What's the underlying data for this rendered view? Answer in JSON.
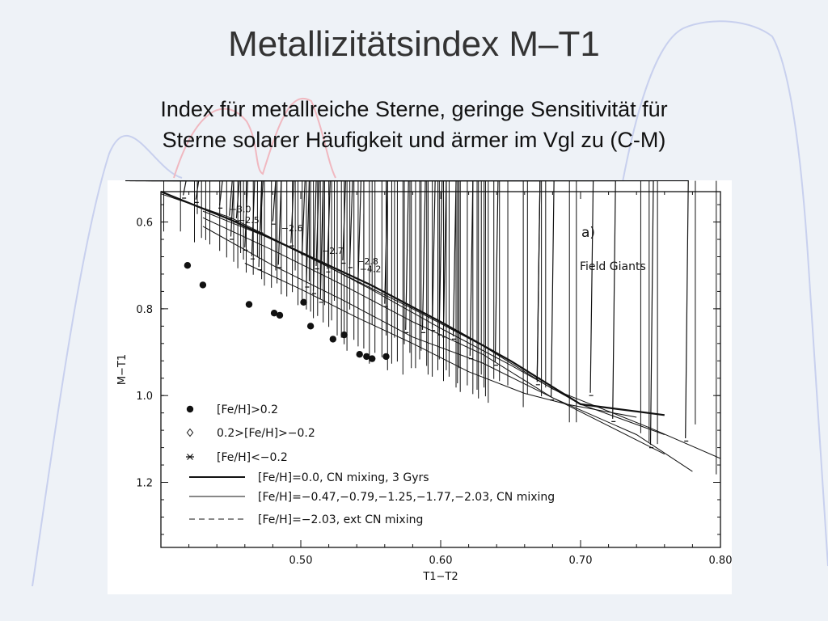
{
  "slide": {
    "title": "Metallizitätsindex M–T1",
    "subtitle_line1": "Index für metallreiche Sterne, geringe Sensitivität für",
    "subtitle_line2": "Sterne solarer Häufigkeit und ärmer im Vgl zu (C-M)"
  },
  "colors": {
    "background": "#eef2f7",
    "decoration_blue": "#c8d0ee",
    "decoration_red": "#f0b8c0"
  },
  "chart_data": {
    "type": "scatter",
    "panel_label": "a)",
    "panel_text": "Field Giants",
    "xlabel": "T1−T2",
    "ylabel": "M−T1",
    "xlim": [
      0.4,
      0.8
    ],
    "ylim": [
      1.35,
      0.53
    ],
    "y_inverted": true,
    "grid": false,
    "legend_position": "lower-left",
    "xticks": [
      0.5,
      0.6,
      0.7,
      0.8
    ],
    "xtick_labels": [
      "0.50",
      "0.60",
      "0.70",
      "0.80"
    ],
    "yticks": [
      0.6,
      0.8,
      1.0,
      1.2
    ],
    "ytick_labels": [
      "0.6",
      "0.8",
      "1.0",
      "1.2"
    ],
    "legend": [
      {
        "symbol": "filled-circle",
        "label": "[Fe/H]>0.2"
      },
      {
        "symbol": "open-diamond",
        "label": "0.2>[Fe/H]>−0.2"
      },
      {
        "symbol": "asterisk",
        "label": "[Fe/H]<−0.2"
      },
      {
        "symbol": "thick-line",
        "label": "[Fe/H]=0.0, CN mixing, 3 Gyrs"
      },
      {
        "symbol": "thin-line",
        "label": "[Fe/H]=−0.47,−0.79,−1.25,−1.77,−2.03, CN mixing"
      },
      {
        "symbol": "dashed-line",
        "label": "[Fe/H]=−2.03, ext CN mixing"
      }
    ],
    "annotations": [
      {
        "text": "−3.0",
        "x": 0.449,
        "y": 0.57
      },
      {
        "text": "−2.5",
        "x": 0.455,
        "y": 0.595
      },
      {
        "text": "−2.6",
        "x": 0.486,
        "y": 0.614
      },
      {
        "text": "−2.7",
        "x": 0.515,
        "y": 0.666
      },
      {
        "text": "−2.8",
        "x": 0.54,
        "y": 0.69
      },
      {
        "text": "−4.2",
        "x": 0.542,
        "y": 0.708
      }
    ],
    "series": [
      {
        "name": "[Fe/H]>0.2",
        "marker": "filled-circle",
        "points": [
          [
            0.419,
            0.7
          ],
          [
            0.43,
            0.745
          ],
          [
            0.463,
            0.79
          ],
          [
            0.481,
            0.81
          ],
          [
            0.485,
            0.815
          ],
          [
            0.502,
            0.785
          ],
          [
            0.507,
            0.84
          ],
          [
            0.523,
            0.87
          ],
          [
            0.531,
            0.86
          ],
          [
            0.542,
            0.905
          ],
          [
            0.547,
            0.91
          ],
          [
            0.551,
            0.915
          ],
          [
            0.561,
            0.91
          ]
        ]
      },
      {
        "name": "0.2>[Fe/H]>−0.2",
        "marker": "open-diamond",
        "points": [
          [
            0.402,
            0.63
          ],
          [
            0.414,
            0.63
          ],
          [
            0.424,
            0.655
          ],
          [
            0.429,
            0.645
          ],
          [
            0.426,
            0.59
          ],
          [
            0.435,
            0.66
          ],
          [
            0.432,
            0.65
          ],
          [
            0.442,
            0.675
          ],
          [
            0.447,
            0.69
          ],
          [
            0.452,
            0.7
          ],
          [
            0.455,
            0.715
          ],
          [
            0.459,
            0.695
          ],
          [
            0.461,
            0.725
          ],
          [
            0.466,
            0.73
          ],
          [
            0.472,
            0.74
          ],
          [
            0.474,
            0.755
          ],
          [
            0.479,
            0.76
          ],
          [
            0.483,
            0.75
          ],
          [
            0.486,
            0.775
          ],
          [
            0.49,
            0.78
          ],
          [
            0.494,
            0.77
          ],
          [
            0.498,
            0.8
          ],
          [
            0.501,
            0.795
          ],
          [
            0.504,
            0.81
          ],
          [
            0.507,
            0.815
          ],
          [
            0.509,
            0.83
          ],
          [
            0.512,
            0.825
          ],
          [
            0.516,
            0.84
          ],
          [
            0.52,
            0.85
          ],
          [
            0.522,
            0.835
          ],
          [
            0.526,
            0.87
          ],
          [
            0.529,
            0.875
          ],
          [
            0.531,
            0.89
          ],
          [
            0.533,
            0.905
          ],
          [
            0.538,
            0.88
          ],
          [
            0.541,
            0.895
          ],
          [
            0.545,
            0.9
          ],
          [
            0.549,
            0.935
          ],
          [
            0.553,
            0.91
          ],
          [
            0.558,
            0.92
          ],
          [
            0.562,
            0.95
          ],
          [
            0.565,
            0.935
          ],
          [
            0.569,
            0.93
          ],
          [
            0.573,
            0.96
          ],
          [
            0.578,
            0.91
          ],
          [
            0.582,
            0.945
          ],
          [
            0.585,
            0.925
          ],
          [
            0.59,
            0.94
          ],
          [
            0.594,
            0.965
          ],
          [
            0.598,
            0.95
          ],
          [
            0.602,
            0.975
          ],
          [
            0.606,
            0.965
          ],
          [
            0.611,
            0.99
          ],
          [
            0.614,
            1.0
          ],
          [
            0.619,
            0.985
          ],
          [
            0.623,
            1.005
          ],
          [
            0.627,
            1.015
          ],
          [
            0.631,
            0.99
          ],
          [
            0.634,
            1.025
          ],
          [
            0.579,
            0.945
          ],
          [
            0.591,
            0.96
          ],
          [
            0.604,
            0.95
          ],
          [
            0.612,
            0.98
          ],
          [
            0.626,
            0.995
          ],
          [
            0.632,
            1.01
          ],
          [
            0.638,
            0.97
          ],
          [
            0.648,
            0.985
          ],
          [
            0.662,
            1.005
          ],
          [
            0.672,
            1.01
          ],
          [
            0.659,
            1.035
          ],
          [
            0.692,
            1.07
          ],
          [
            0.697,
            1.07
          ],
          [
            0.675,
            0.99
          ],
          [
            0.743,
            1.095
          ],
          [
            0.749,
            1.115
          ],
          [
            0.755,
            1.12
          ],
          [
            0.782,
            1.075
          ],
          [
            0.797,
            1.19
          ],
          [
            0.457,
            0.68
          ],
          [
            0.469,
            0.69
          ],
          [
            0.482,
            0.72
          ],
          [
            0.496,
            0.72
          ],
          [
            0.506,
            0.745
          ],
          [
            0.514,
            0.76
          ],
          [
            0.517,
            0.8
          ],
          [
            0.524,
            0.79
          ],
          [
            0.535,
            0.81
          ],
          [
            0.545,
            0.83
          ],
          [
            0.551,
            0.845
          ],
          [
            0.561,
            0.87
          ],
          [
            0.567,
            0.875
          ],
          [
            0.574,
            0.89
          ],
          [
            0.586,
            0.905
          ],
          [
            0.599,
            0.925
          ],
          [
            0.613,
            0.945
          ],
          [
            0.629,
            0.96
          ],
          [
            0.642,
            0.975
          ]
        ]
      },
      {
        "name": "[Fe/H]<−0.2",
        "marker": "asterisk",
        "points": [
          [
            0.418,
            0.545
          ],
          [
            0.427,
            0.555
          ],
          [
            0.444,
            0.568
          ],
          [
            0.451,
            0.592
          ],
          [
            0.456,
            0.598
          ],
          [
            0.473,
            0.625
          ],
          [
            0.482,
            0.605
          ],
          [
            0.495,
            0.655
          ],
          [
            0.503,
            0.675
          ],
          [
            0.513,
            0.708
          ],
          [
            0.521,
            0.715
          ],
          [
            0.532,
            0.695
          ],
          [
            0.537,
            0.705
          ],
          [
            0.452,
            0.64
          ],
          [
            0.462,
            0.665
          ],
          [
            0.467,
            0.685
          ],
          [
            0.472,
            0.71
          ],
          [
            0.486,
            0.705
          ],
          [
            0.506,
            0.75
          ],
          [
            0.511,
            0.765
          ],
          [
            0.516,
            0.785
          ],
          [
            0.543,
            0.74
          ],
          [
            0.562,
            0.795
          ],
          [
            0.577,
            0.855
          ],
          [
            0.589,
            0.855
          ],
          [
            0.596,
            0.85
          ],
          [
            0.601,
            0.86
          ],
          [
            0.604,
            0.865
          ],
          [
            0.611,
            0.87
          ],
          [
            0.623,
            0.915
          ],
          [
            0.641,
            0.93
          ],
          [
            0.671,
            0.96
          ],
          [
            0.671,
            0.975
          ],
          [
            0.681,
            1.01
          ],
          [
            0.709,
            1.0
          ],
          [
            0.725,
            1.06
          ],
          [
            0.752,
            1.12
          ],
          [
            0.777,
            1.105
          ],
          [
            0.802,
            1.105
          ],
          [
            0.818,
            1.11
          ]
        ]
      }
    ],
    "models": [
      {
        "style": "thick",
        "points": [
          [
            0.4,
            0.53
          ],
          [
            0.45,
            0.595
          ],
          [
            0.5,
            0.67
          ],
          [
            0.55,
            0.745
          ],
          [
            0.6,
            0.83
          ],
          [
            0.65,
            0.92
          ],
          [
            0.7,
            1.02
          ],
          [
            0.76,
            1.045
          ]
        ]
      },
      {
        "style": "thin",
        "points": [
          [
            0.4,
            0.535
          ],
          [
            0.45,
            0.59
          ],
          [
            0.5,
            0.67
          ],
          [
            0.55,
            0.755
          ],
          [
            0.6,
            0.845
          ],
          [
            0.65,
            0.93
          ],
          [
            0.7,
            1.02
          ],
          [
            0.76,
            1.09
          ]
        ]
      },
      {
        "style": "thin",
        "points": [
          [
            0.43,
            0.575
          ],
          [
            0.48,
            0.64
          ],
          [
            0.53,
            0.72
          ],
          [
            0.58,
            0.8
          ],
          [
            0.63,
            0.885
          ],
          [
            0.68,
            0.985
          ],
          [
            0.75,
            1.075
          ],
          [
            0.8,
            1.145
          ]
        ]
      },
      {
        "style": "thin",
        "points": [
          [
            0.43,
            0.59
          ],
          [
            0.48,
            0.665
          ],
          [
            0.53,
            0.745
          ],
          [
            0.58,
            0.83
          ],
          [
            0.63,
            0.905
          ],
          [
            0.68,
            1.005
          ],
          [
            0.76,
            1.135
          ]
        ]
      },
      {
        "style": "thin",
        "points": [
          [
            0.43,
            0.61
          ],
          [
            0.48,
            0.7
          ],
          [
            0.53,
            0.78
          ],
          [
            0.58,
            0.865
          ],
          [
            0.63,
            0.925
          ],
          [
            0.68,
            1.005
          ],
          [
            0.74,
            1.09
          ],
          [
            0.78,
            1.175
          ]
        ]
      },
      {
        "style": "thin",
        "points": [
          [
            0.46,
            0.695
          ],
          [
            0.5,
            0.755
          ],
          [
            0.54,
            0.82
          ],
          [
            0.58,
            0.88
          ],
          [
            0.62,
            0.945
          ],
          [
            0.66,
            0.995
          ],
          [
            0.69,
            1.02
          ],
          [
            0.74,
            1.05
          ]
        ]
      }
    ]
  }
}
